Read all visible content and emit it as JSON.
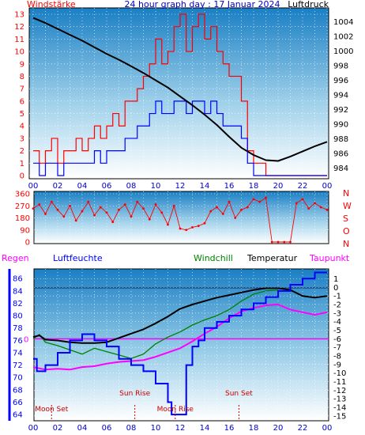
{
  "chart_data": [
    {
      "type": "line",
      "title": "24 hour graph day : 17 Januar 2024",
      "left_label": "Windstärke",
      "right_label": "Luftdruck",
      "x_ticks": [
        "00",
        "02",
        "04",
        "06",
        "08",
        "10",
        "12",
        "14",
        "16",
        "18",
        "20",
        "22",
        "00"
      ],
      "left_ticks": [
        "0",
        "1",
        "2",
        "3",
        "4",
        "5",
        "6",
        "7",
        "8",
        "9",
        "10",
        "11",
        "12",
        "13"
      ],
      "right_ticks": [
        "984",
        "986",
        "988",
        "990",
        "992",
        "994",
        "996",
        "998",
        "1000",
        "1002",
        "1004"
      ],
      "ylim_left": [
        0,
        13
      ],
      "ylim_right": [
        983,
        1005
      ],
      "series": [
        {
          "name": "Luftdruck",
          "color": "#000000",
          "x": [
            0,
            1,
            2,
            3,
            4,
            5,
            6,
            7,
            8,
            9,
            10,
            11,
            12,
            13,
            14,
            15,
            16,
            17,
            18,
            19,
            20,
            21,
            22,
            23,
            24
          ],
          "values": [
            1004.5,
            1003.8,
            1003.0,
            1002.2,
            1001.4,
            1000.5,
            999.6,
            998.8,
            997.9,
            997.0,
            996.0,
            995.0,
            993.8,
            992.6,
            991.3,
            989.9,
            988.3,
            986.8,
            985.8,
            985.1,
            985.0,
            985.6,
            986.3,
            987.0,
            987.6
          ]
        },
        {
          "name": "Windstärke Böen",
          "color": "#ff0000",
          "x": [
            0,
            0.5,
            1,
            1.5,
            2,
            2.5,
            3,
            3.5,
            4,
            4.5,
            5,
            5.5,
            6,
            6.5,
            7,
            7.5,
            8,
            8.5,
            9,
            9.5,
            10,
            10.5,
            11,
            11.5,
            12,
            12.5,
            13,
            13.5,
            14,
            14.5,
            15,
            15.5,
            16,
            16.5,
            17,
            17.5,
            18,
            18.5,
            19,
            19.5,
            20,
            20.5,
            21,
            21.5,
            22,
            22.5,
            23,
            23.5,
            24
          ],
          "values": [
            2,
            1,
            2,
            3,
            1,
            2,
            2,
            3,
            2,
            3,
            4,
            3,
            4,
            5,
            4,
            6,
            6,
            7,
            8,
            9,
            11,
            9,
            10,
            12,
            13,
            10,
            12,
            13,
            11,
            12,
            10,
            9,
            8,
            8,
            6,
            2,
            1,
            1,
            0,
            0,
            0,
            0,
            0,
            0,
            0,
            0,
            0,
            0,
            0
          ]
        },
        {
          "name": "Windstärke Mittel",
          "color": "#0000ff",
          "x": [
            0,
            0.5,
            1,
            1.5,
            2,
            2.5,
            3,
            3.5,
            4,
            4.5,
            5,
            5.5,
            6,
            6.5,
            7,
            7.5,
            8,
            8.5,
            9,
            9.5,
            10,
            10.5,
            11,
            11.5,
            12,
            12.5,
            13,
            13.5,
            14,
            14.5,
            15,
            15.5,
            16,
            16.5,
            17,
            17.5,
            18,
            18.5,
            19,
            19.5,
            20,
            20.5,
            21,
            21.5,
            22,
            22.5,
            23,
            23.5,
            24
          ],
          "values": [
            1,
            0,
            1,
            1,
            0,
            1,
            1,
            1,
            1,
            1,
            2,
            1,
            2,
            2,
            2,
            3,
            3,
            4,
            4,
            5,
            6,
            5,
            5,
            6,
            6,
            5,
            6,
            6,
            5,
            6,
            5,
            4,
            4,
            4,
            3,
            1,
            0,
            0,
            0,
            0,
            0,
            0,
            0,
            0,
            0,
            0,
            0,
            0,
            0
          ]
        }
      ]
    },
    {
      "type": "scatter",
      "right_label": "N W S O N",
      "left_ticks": [
        "0",
        "90",
        "180",
        "270",
        "360"
      ],
      "ylim": [
        0,
        360
      ],
      "series": [
        {
          "name": "Windrichtung",
          "color": "#ff0000",
          "x": [
            0,
            0.5,
            1,
            1.5,
            2,
            2.5,
            3,
            3.5,
            4,
            4.5,
            5,
            5.5,
            6,
            6.5,
            7,
            7.5,
            8,
            8.5,
            9,
            9.5,
            10,
            10.5,
            11,
            11.5,
            12,
            12.5,
            13,
            13.5,
            14,
            14.5,
            15,
            15.5,
            16,
            16.5,
            17,
            17.5,
            18,
            18.5,
            19,
            19.5,
            20,
            20.5,
            21,
            21.5,
            22,
            22.5,
            23,
            23.5,
            24
          ],
          "values": [
            250,
            280,
            210,
            300,
            240,
            190,
            270,
            160,
            230,
            300,
            200,
            260,
            220,
            150,
            240,
            280,
            190,
            300,
            250,
            170,
            280,
            220,
            130,
            270,
            100,
            90,
            110,
            120,
            140,
            230,
            260,
            210,
            300,
            180,
            240,
            260,
            320,
            300,
            330,
            0,
            0,
            0,
            0,
            290,
            320,
            250,
            290,
            260,
            240
          ]
        }
      ]
    },
    {
      "type": "line",
      "labels": {
        "rain": "Regen",
        "humidity": "Luftfeuchte",
        "windchill": "Windchill",
        "temperature": "Temperatur",
        "dewpoint": "Taupunkt"
      },
      "left_ticks": [
        "64",
        "66",
        "68",
        "70",
        "72",
        "74",
        "76",
        "78",
        "80",
        "82",
        "84",
        "86"
      ],
      "right_ticks": [
        "1",
        "0",
        "-1",
        "-2",
        "-3",
        "-4",
        "-5",
        "-6",
        "-7",
        "-8",
        "-9",
        "-10",
        "-11",
        "-12",
        "-13",
        "-14",
        "-15"
      ],
      "zero_label": "0",
      "ylim_left": [
        63.5,
        86.8
      ],
      "ylim_right": [
        -15.2,
        1.6
      ],
      "events": [
        {
          "label": "Moon Set",
          "x": 1.5,
          "row": "low"
        },
        {
          "label": "Sun Rise",
          "x": 8.3,
          "row": "high"
        },
        {
          "label": "Moon Rise",
          "x": 11.6,
          "row": "low"
        },
        {
          "label": "Sun Set",
          "x": 16.8,
          "row": "high"
        }
      ],
      "series": [
        {
          "name": "Temperatur",
          "color": "#000000",
          "x": [
            0,
            0.5,
            1,
            2,
            3,
            4,
            5,
            6,
            7,
            8,
            9,
            10,
            11,
            12,
            13,
            14,
            15,
            16,
            17,
            18,
            19,
            20,
            21,
            22,
            23,
            24
          ],
          "values": [
            -5.8,
            -5.6,
            -6.1,
            -6.2,
            -6.4,
            -6.5,
            -6.5,
            -6.4,
            -5.9,
            -5.4,
            -4.9,
            -4.2,
            -3.4,
            -2.5,
            -2.0,
            -1.6,
            -1.2,
            -0.9,
            -0.6,
            -0.3,
            -0.1,
            -0.1,
            -0.3,
            -1.0,
            -1.2,
            -1.0
          ]
        },
        {
          "name": "Windchill",
          "color": "#008000",
          "x": [
            0,
            0.5,
            1,
            2,
            3,
            4,
            5,
            6,
            7,
            8,
            9,
            10,
            11,
            12,
            13,
            14,
            15,
            16,
            17,
            18,
            19,
            20
          ],
          "values": [
            -6.0,
            -5.5,
            -6.4,
            -6.8,
            -7.3,
            -7.8,
            -7.1,
            -7.5,
            -7.9,
            -8.3,
            -7.8,
            -6.6,
            -5.8,
            -5.2,
            -4.4,
            -3.8,
            -3.3,
            -2.6,
            -1.6,
            -0.8,
            -0.4,
            -0.3
          ]
        },
        {
          "name": "Taupunkt",
          "color": "#ff00ff",
          "x": [
            0,
            1,
            2,
            3,
            4,
            5,
            6,
            7,
            8,
            9,
            10,
            11,
            12,
            13,
            14,
            15,
            16,
            17,
            18,
            19,
            20,
            21,
            22,
            23,
            24
          ],
          "values": [
            -9.3,
            -9.6,
            -9.5,
            -9.6,
            -9.3,
            -9.2,
            -8.9,
            -8.7,
            -8.6,
            -8.5,
            -8.1,
            -7.6,
            -7.1,
            -6.3,
            -5.4,
            -4.6,
            -3.6,
            -2.8,
            -2.4,
            -2.1,
            -2.0,
            -2.6,
            -2.9,
            -3.2,
            -2.9
          ]
        },
        {
          "name": "Luftfeuchte",
          "color": "#0000ff",
          "x": [
            0,
            0.3,
            1,
            2,
            3,
            4,
            5,
            6,
            7,
            8,
            9,
            10,
            11,
            11.3,
            12,
            12.5,
            13,
            13.5,
            14,
            15,
            16,
            17,
            18,
            19,
            20,
            21,
            22,
            23,
            24
          ],
          "values": [
            73,
            71,
            72,
            74,
            76,
            77,
            76,
            75,
            73,
            72,
            71,
            69,
            66,
            64,
            64,
            72,
            75,
            76,
            78,
            79,
            80,
            81,
            82,
            83,
            84,
            85,
            86,
            87,
            87
          ]
        }
      ]
    }
  ]
}
